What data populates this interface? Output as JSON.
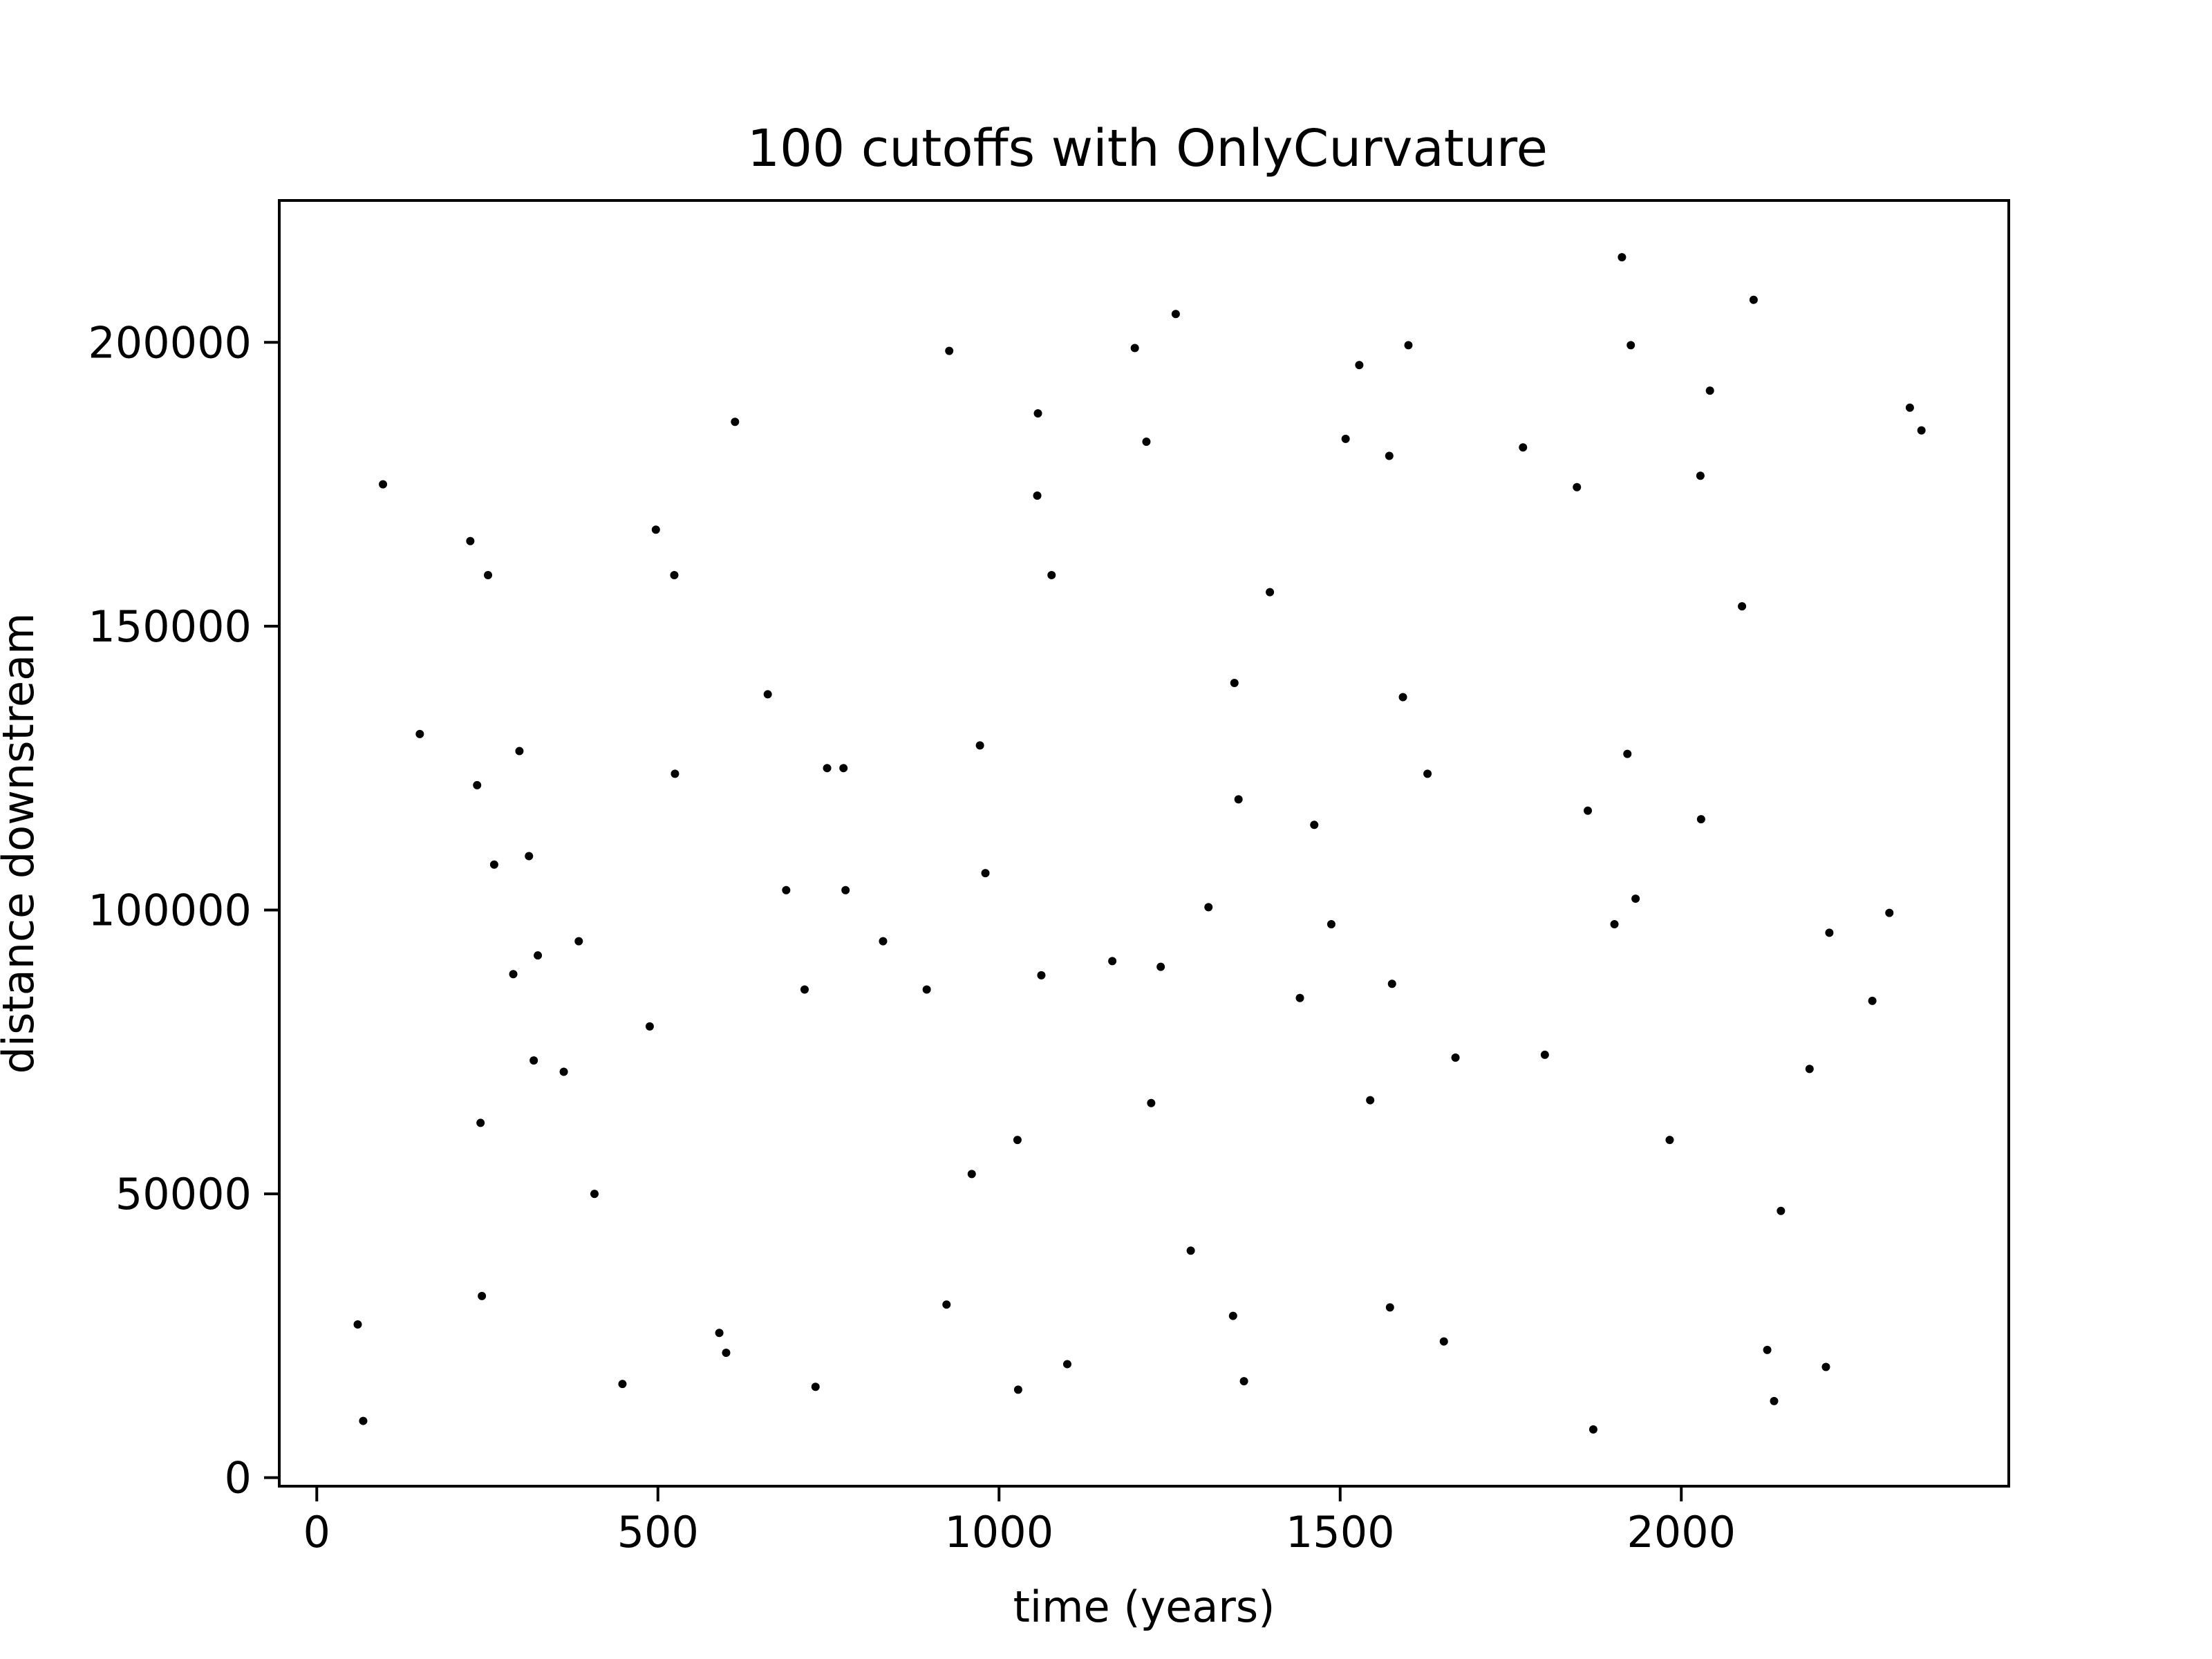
{
  "chart_data": {
    "type": "scatter",
    "title": "100 cutoffs with OnlyCurvature",
    "xlabel": "time (years)",
    "ylabel": "distance downstream",
    "xlim": [
      -55,
      2480
    ],
    "ylim": [
      -1500,
      225000
    ],
    "xticks": [
      0,
      500,
      1000,
      1500,
      2000
    ],
    "yticks": [
      0,
      50000,
      100000,
      150000,
      200000
    ],
    "grid": false,
    "legend": "none",
    "marker_color": "#000000",
    "series": [
      {
        "points": [
          [
            60,
            27000
          ],
          [
            68,
            10000
          ],
          [
            97,
            175000
          ],
          [
            151,
            131000
          ],
          [
            225,
            165000
          ],
          [
            235,
            122000
          ],
          [
            240,
            62500
          ],
          [
            242,
            32000
          ],
          [
            251,
            159000
          ],
          [
            260,
            108000
          ],
          [
            288,
            88700
          ],
          [
            297,
            128000
          ],
          [
            311,
            109500
          ],
          [
            318,
            73500
          ],
          [
            324,
            92000
          ],
          [
            362,
            71500
          ],
          [
            384,
            94500
          ],
          [
            407,
            50000
          ],
          [
            448,
            16500
          ],
          [
            488,
            79500
          ],
          [
            497,
            167000
          ],
          [
            524,
            159000
          ],
          [
            525,
            124000
          ],
          [
            590,
            25500
          ],
          [
            600,
            22000
          ],
          [
            613,
            186000
          ],
          [
            661,
            138000
          ],
          [
            688,
            103500
          ],
          [
            715,
            86000
          ],
          [
            731,
            16000
          ],
          [
            748,
            125000
          ],
          [
            772,
            125000
          ],
          [
            775,
            103500
          ],
          [
            830,
            94500
          ],
          [
            894,
            86000
          ],
          [
            923,
            30500
          ],
          [
            927,
            198500
          ],
          [
            960,
            53500
          ],
          [
            972,
            129000
          ],
          [
            980,
            106500
          ],
          [
            1027,
            59500
          ],
          [
            1028,
            15500
          ],
          [
            1056,
            173000
          ],
          [
            1057,
            187500
          ],
          [
            1062,
            88500
          ],
          [
            1077,
            159000
          ],
          [
            1100,
            20000
          ],
          [
            1166,
            91000
          ],
          [
            1199,
            199000
          ],
          [
            1216,
            182500
          ],
          [
            1223,
            66000
          ],
          [
            1237,
            90000
          ],
          [
            1259,
            205000
          ],
          [
            1281,
            40000
          ],
          [
            1307,
            100500
          ],
          [
            1343,
            28500
          ],
          [
            1345,
            140000
          ],
          [
            1351,
            119500
          ],
          [
            1359,
            17000
          ],
          [
            1397,
            156000
          ],
          [
            1441,
            84500
          ],
          [
            1462,
            115000
          ],
          [
            1487,
            97500
          ],
          [
            1508,
            183000
          ],
          [
            1528,
            196000
          ],
          [
            1544,
            66500
          ],
          [
            1572,
            180000
          ],
          [
            1573,
            30000
          ],
          [
            1576,
            87000
          ],
          [
            1592,
            137500
          ],
          [
            1600,
            199500
          ],
          [
            1628,
            124000
          ],
          [
            1652,
            24000
          ],
          [
            1669,
            74000
          ],
          [
            1768,
            181500
          ],
          [
            1800,
            74500
          ],
          [
            1847,
            174500
          ],
          [
            1863,
            117500
          ],
          [
            1871,
            8500
          ],
          [
            1902,
            97500
          ],
          [
            1913,
            215000
          ],
          [
            1921,
            127500
          ],
          [
            1926,
            199500
          ],
          [
            1933,
            102000
          ],
          [
            1983,
            59500
          ],
          [
            2028,
            176500
          ],
          [
            2029,
            116000
          ],
          [
            2042,
            191500
          ],
          [
            2089,
            153500
          ],
          [
            2106,
            207500
          ],
          [
            2126,
            22500
          ],
          [
            2136,
            13500
          ],
          [
            2146,
            47000
          ],
          [
            2188,
            72000
          ],
          [
            2212,
            19500
          ],
          [
            2217,
            96000
          ],
          [
            2280,
            84000
          ],
          [
            2305,
            99500
          ],
          [
            2335,
            188500
          ],
          [
            2352,
            184500
          ]
        ]
      }
    ]
  }
}
